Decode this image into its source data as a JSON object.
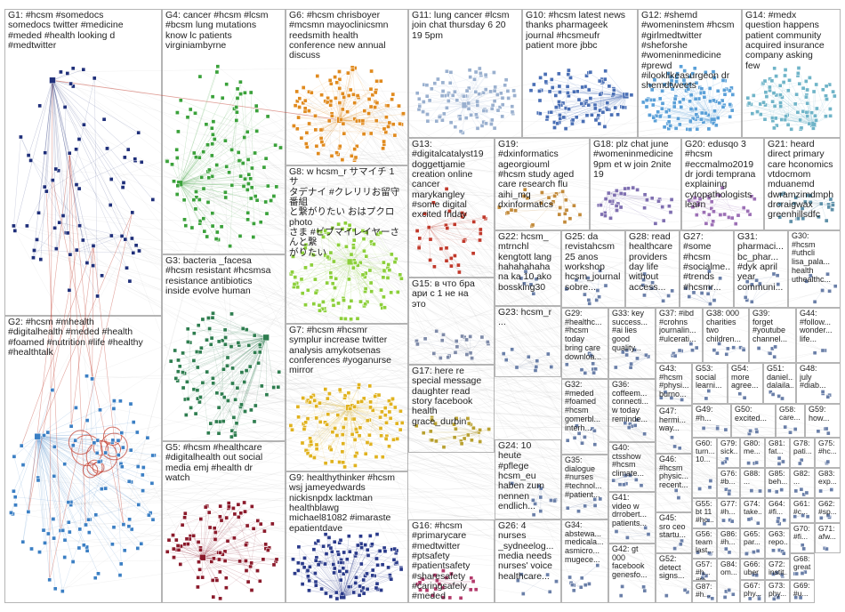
{
  "colors": {
    "G1": "#1f2f7a",
    "G2": "#3b7fc4",
    "G3": "#2e7d4f",
    "G4": "#3aa13a",
    "G5": "#8b1a2b",
    "G6": "#e08a1e",
    "G7": "#e0b21e",
    "G8": "#8ccf3a",
    "G9": "#2a3a8a",
    "G10": "#4a6fb5",
    "G11": "#9ab0cf",
    "G12": "#5aa0d8",
    "G13": "#c0392b",
    "G14": "#6fb4c8",
    "G15": "#7e8aa8",
    "G16": "#b33a6b",
    "G17": "#b8a030",
    "G18": "#7f6fb0",
    "G19": "#c28a3a",
    "G20": "#9c6fb5",
    "G21": "#5d8fa8",
    "small": "#6a7fa8",
    "edge": "#9a9a9a",
    "edge_red": "#c0392b"
  },
  "clusters": [
    {
      "id": "G1",
      "label": "G1: #hcsm #somedocs\nsomedocs twitter #medicine\n#meded #health looking d\n#medtwitter"
    },
    {
      "id": "G2",
      "label": "G2: #hcsm #mhealth\n#digitalhealth #meded #health\n#foamed #nutrition #life #healthy\n#healthtalk"
    },
    {
      "id": "G3",
      "label": "G3: bacteria _facesa\n#hcsm resistant #hcsmsa\nresistance antibiotics\ninside evolve human"
    },
    {
      "id": "G4",
      "label": "G4: cancer #hcsm #lcsm\n#bcsm lung mutations\nknow lc patients\nvirginiambyrne"
    },
    {
      "id": "G5",
      "label": "G5: #hcsm #healthcare\n#digitalhealth out social\nmedia emj #health dr\nwatch"
    },
    {
      "id": "G6",
      "label": "G6: #hcsm chrisboyer\n#mcsmn mayoclinicsmn\nreedsmith health\nconference new annual\ndiscuss"
    },
    {
      "id": "G7",
      "label": "G7: #hcsm #hcsmr\nsymplur increase twitter\nanalysis amykotsenas\nconferences #yoganurse\nmirror"
    },
    {
      "id": "G8",
      "label": "G8: w hcsm_r サマイチ 1 サ\nタデナイ #クレリリお留守番組\nと繋がりたい おはプクロ photo\nさま #ビブマイレイヤーさんと繋\nがりたい"
    },
    {
      "id": "G9",
      "label": "G9: healthythinker #hcsm\nwsj jameyedwards\nnickisnpdx lacktman\nhealthblawg\nmichael81082 #imaraste\nepatientdave"
    },
    {
      "id": "G10",
      "label": "G10: #hcsm latest news\nthanks pharmageek\njournal #hcsmeufr\npatient more jbbc"
    },
    {
      "id": "G11",
      "label": "G11: lung cancer #lcsm\njoin chat thursday 6 20\n19 5pm"
    },
    {
      "id": "G12",
      "label": "G12: #shemd\n#womeninstem #hcsm\n#girlmedtwitter\n#sheforshe\n#womeninmedicine\n#prewd\n#ilooklikeasurgeon dr\nshemdtweets"
    },
    {
      "id": "G13",
      "label": "G13:\n#digitalcatalyst19\ndoggettjamie\ncreation online\ncancer\nmarykangley\n#some digital\nexcited friday"
    },
    {
      "id": "G14",
      "label": "G14: #medx\nquestion happens\npatient community\nacquired insurance\ncompany asking\nfew"
    },
    {
      "id": "G15",
      "label": "G15: в что бра\nари с 1 не на\nэто"
    },
    {
      "id": "G16",
      "label": "G16: #hcsm\n#primarycare\n#medtwitter\n#ptsafety\n#patientsafety\n#sharesafety\n#caringsafely\n#meded #foamed..."
    },
    {
      "id": "G17",
      "label": "G17: here re\nspecial message\ndaughter read\nstory facebook\nhealth\ngrace_durbin"
    },
    {
      "id": "G18",
      "label": "G18: plz chat june\n#womeninmedicine\n9pm et w join 2nite\n19"
    },
    {
      "id": "G19",
      "label": "G19:\n#dxinformatics\nageorgiouml\n#hcsm study aged\ncare research flu\naihi_mq\ndxinformatics"
    },
    {
      "id": "G20",
      "label": "G20: edusqo 3\n#hcsm\n#eccmalmo2019\ndr jordi temprana\nexplaining\ncytopathologists\nlearn"
    },
    {
      "id": "G21",
      "label": "G21: heard\ndirect primary\ncare hconomics\nvtdocmom\nmduanemd\ndwramzimdmph\ndrcraigwax\ngreenhillsdfc"
    },
    {
      "id": "G22",
      "label": "G22: hcsm_\nmtrnchl\nkengtott lang\nhahahahaha\nna ka 10 ako\nbossking30"
    },
    {
      "id": "G23",
      "label": "G23: hcsm_r\n..."
    },
    {
      "id": "G24",
      "label": "G24: 10\nheute\n#pflege\nhcsm_eu\nhaben zum\nnennen\nendlich..."
    },
    {
      "id": "G25",
      "label": "G25: da\nrevistahcsm\n25 anos\nworkshop\nhcsm_journal\nsobre..."
    },
    {
      "id": "G26",
      "label": "G26: 4\nnurses\n_sydneelog...\nmedia needs\nnurses' voice\nhealthcare..."
    },
    {
      "id": "G27",
      "label": "G27:\n#some\n#hcsm\n#socialme...\n#trends\n#hcsmr..."
    },
    {
      "id": "G28",
      "label": "G28: read\nhealthcare\nproviders\nday life\nwithout\naccess..."
    },
    {
      "id": "G29",
      "label": "G29:\n#healthc...\n#hcsm\ntoday\nbring care\ndownloa..."
    },
    {
      "id": "G30",
      "label": "G30:\n#hcsm\n#uthcli\nlisa_pala...\nhealth\nuthealthc..."
    },
    {
      "id": "G31",
      "label": "G31:\npharmaci...\nbc_phar...\n#dyk april\nyear\ncommuni..."
    },
    {
      "id": "G32",
      "label": "G32:\n#meded\n#foamed\n#hcsm\ngomerbl...\ninterh..."
    },
    {
      "id": "G33",
      "label": "G33: key\nsuccess...\n#ai lies\ngood\nquality..."
    },
    {
      "id": "G34",
      "label": "G34:\nabstewa...\nmedicala...\nasmicro...\nmugece..."
    },
    {
      "id": "G35",
      "label": "G35:\ndialogue\n#nurses\n#technol...\n#patient..."
    },
    {
      "id": "G36",
      "label": "G36:\ncoffeem...\nconnecti...\nw today\nreminde..."
    },
    {
      "id": "G37",
      "label": "G37: #ibd\n#crohns\njournalin...\n#ulcerati..."
    },
    {
      "id": "G38",
      "label": "G38: 000\ncharities\ntwo\nchildren..."
    },
    {
      "id": "G39",
      "label": "G39:\nforget\n#youtube\nchannel..."
    },
    {
      "id": "G40",
      "label": "G40:\nctsshow\n#hcsm\nclimate..."
    },
    {
      "id": "G41",
      "label": "G41:\nvideo w\ndrrobert...\npatients..."
    },
    {
      "id": "G42",
      "label": "G42: gt\n000\nfacebook\ngenesfo..."
    },
    {
      "id": "G43",
      "label": "G43:\n#hcsm\n#physi...\nburno..."
    },
    {
      "id": "G44",
      "label": "G44:\n#follow...\nwonder...\nlife..."
    },
    {
      "id": "G45",
      "label": "G45:\nsro ceo\nstartu..."
    },
    {
      "id": "G46",
      "label": "G46:\n#hcsm\nphysic...\nrecent..."
    },
    {
      "id": "G47",
      "label": "G47:\nhermi...\nway..."
    },
    {
      "id": "G48",
      "label": "G48:\njuly\n#diab..."
    },
    {
      "id": "G49",
      "label": "G49:\n#h..."
    },
    {
      "id": "G50",
      "label": "G50:\nexcited..."
    },
    {
      "id": "G51",
      "label": "G51:\ndaniel...\ndalaila..."
    },
    {
      "id": "G52",
      "label": "G52:\ndetect\nsigns..."
    },
    {
      "id": "G53",
      "label": "G53:\nsocial\nlearni..."
    },
    {
      "id": "G54",
      "label": "G54:\nmore\nagree..."
    },
    {
      "id": "G55",
      "label": "G55:\nbt 11\n#hc..."
    },
    {
      "id": "G56",
      "label": "G56:\nteam\nlast..."
    },
    {
      "id": "G57",
      "label": "G57:\n#h...\n#tc..."
    },
    {
      "id": "G58",
      "label": "G58:\ncare..."
    },
    {
      "id": "G59",
      "label": "G59:\nhow..."
    },
    {
      "id": "G60",
      "label": "G60:\nturn...\n10..."
    },
    {
      "id": "G61",
      "label": "G61:\n#c..."
    },
    {
      "id": "G62",
      "label": "G62:\n#sp..."
    },
    {
      "id": "G63",
      "label": "G63:\nrepo..."
    },
    {
      "id": "G64",
      "label": "G64:\n#fi..."
    },
    {
      "id": "G65",
      "label": "G65:\npar..."
    },
    {
      "id": "G66",
      "label": "G66:\nuber"
    },
    {
      "id": "G67",
      "label": "G67:\nphy..."
    },
    {
      "id": "G68",
      "label": "G68:\ngreat"
    },
    {
      "id": "G69",
      "label": "G69:\n#u..."
    },
    {
      "id": "G70",
      "label": "G70:\n#fi..."
    },
    {
      "id": "G71",
      "label": "G71:\nafw..."
    },
    {
      "id": "G72",
      "label": "G72:\ninstit..."
    },
    {
      "id": "G73",
      "label": "G73:\nphy..."
    },
    {
      "id": "G74",
      "label": "G74:\ntake..."
    },
    {
      "id": "G75",
      "label": "G75:\n#hc..."
    },
    {
      "id": "G76",
      "label": "G76:\n#b..."
    },
    {
      "id": "G77",
      "label": "G77:\n#h..."
    },
    {
      "id": "G78",
      "label": "G78:\npati..."
    },
    {
      "id": "G79",
      "label": "G79:\nsick..."
    },
    {
      "id": "G80",
      "label": "G80:\nme..."
    },
    {
      "id": "G81",
      "label": "G81:\nfat..."
    },
    {
      "id": "G82",
      "label": "G82:\n..."
    },
    {
      "id": "G83",
      "label": "G83:\nexp..."
    },
    {
      "id": "G84",
      "label": "G84:\nom..."
    },
    {
      "id": "G85",
      "label": "G85:\nbeh..."
    },
    {
      "id": "G86",
      "label": "G86:\n#h..."
    },
    {
      "id": "G87",
      "label": "G87:\n#h..."
    },
    {
      "id": "G88",
      "label": "G88:\n..."
    }
  ]
}
